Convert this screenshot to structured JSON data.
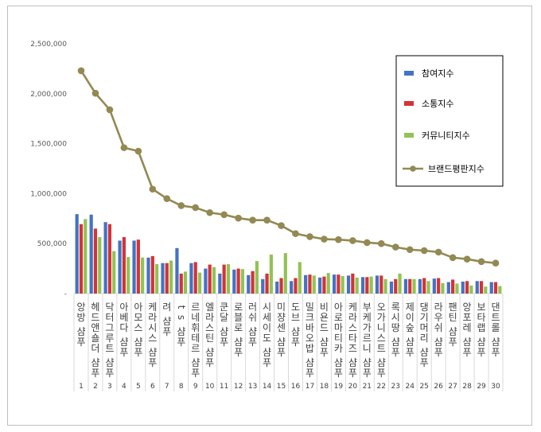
{
  "chart_data": {
    "type": "bar",
    "title": "",
    "xlabel": "",
    "ylabel": "",
    "ylim": [
      0,
      2500000
    ],
    "ytick_labels": [
      "2,500,000",
      "2,000,000",
      "1,500,000",
      "1,000,000",
      "500,000",
      "-"
    ],
    "ytick_values": [
      2500000,
      2000000,
      1500000,
      1000000,
      500000,
      0
    ],
    "grid": false,
    "legend_position": "top-right",
    "categories": [
      "앙방 샴푸",
      "헤드앤숄더 샴푸",
      "닥터그루트 샴푸",
      "아베다 샴푸",
      "아모스 샴푸",
      "케라시스 샴푸",
      "려 샴푸",
      "ts 샴푸",
      "르네휘테르 샴푸",
      "엘라스틴 샴푸",
      "쿤달 샴푸",
      "로블로 샴푸",
      "러쉬 샴푸",
      "시세이도 샴푸",
      "미쟝센 샴푸",
      "도브 샴푸",
      "밀크바오밥 샴푸",
      "비욘드 샴푸",
      "아로마티카 샴푸",
      "케라스타즈 샴푸",
      "부케가르니 샴푸",
      "오가니스트 샴푸",
      "록시땅 샴푸",
      "제이숲 샴푸",
      "댕기머리 샴푸",
      "라우쉬 샴푸",
      "팬틴 샴푸",
      "앙포레 샴푸",
      "보타랩 샴푸",
      "댄트롤 샴푸"
    ],
    "indices": [
      "1",
      "2",
      "3",
      "4",
      "5",
      "6",
      "7",
      "8",
      "9",
      "10",
      "11",
      "12",
      "13",
      "14",
      "15",
      "16",
      "17",
      "18",
      "19",
      "20",
      "21",
      "22",
      "23",
      "24",
      "25",
      "26",
      "27",
      "28",
      "29",
      "30"
    ],
    "series": [
      {
        "name": "참여지수",
        "type": "bar",
        "color": "#4472c4",
        "values": [
          795000,
          790000,
          715000,
          530000,
          530000,
          360000,
          305000,
          455000,
          305000,
          250000,
          200000,
          240000,
          185000,
          145000,
          120000,
          125000,
          185000,
          160000,
          190000,
          180000,
          165000,
          180000,
          120000,
          145000,
          145000,
          150000,
          115000,
          120000,
          125000,
          115000
        ]
      },
      {
        "name": "소통지수",
        "type": "bar",
        "color": "#d13438",
        "values": [
          695000,
          650000,
          695000,
          565000,
          540000,
          375000,
          305000,
          200000,
          315000,
          290000,
          290000,
          250000,
          225000,
          200000,
          155000,
          155000,
          190000,
          170000,
          190000,
          200000,
          165000,
          180000,
          145000,
          145000,
          155000,
          155000,
          140000,
          125000,
          125000,
          115000
        ]
      },
      {
        "name": "커뮤니티지수",
        "type": "bar",
        "color": "#92c353",
        "values": [
          745000,
          565000,
          425000,
          365000,
          360000,
          295000,
          330000,
          220000,
          210000,
          265000,
          295000,
          245000,
          325000,
          390000,
          405000,
          315000,
          180000,
          205000,
          175000,
          160000,
          170000,
          145000,
          200000,
          145000,
          125000,
          105000,
          100000,
          80000,
          70000,
          75000
        ]
      },
      {
        "name": "브랜드평판지수",
        "type": "line",
        "color": "#938953",
        "values": [
          2230000,
          2005000,
          1840000,
          1460000,
          1425000,
          1045000,
          950000,
          880000,
          860000,
          810000,
          790000,
          755000,
          735000,
          735000,
          680000,
          600000,
          570000,
          545000,
          540000,
          530000,
          510000,
          500000,
          465000,
          440000,
          430000,
          415000,
          360000,
          345000,
          320000,
          305000
        ]
      }
    ]
  }
}
